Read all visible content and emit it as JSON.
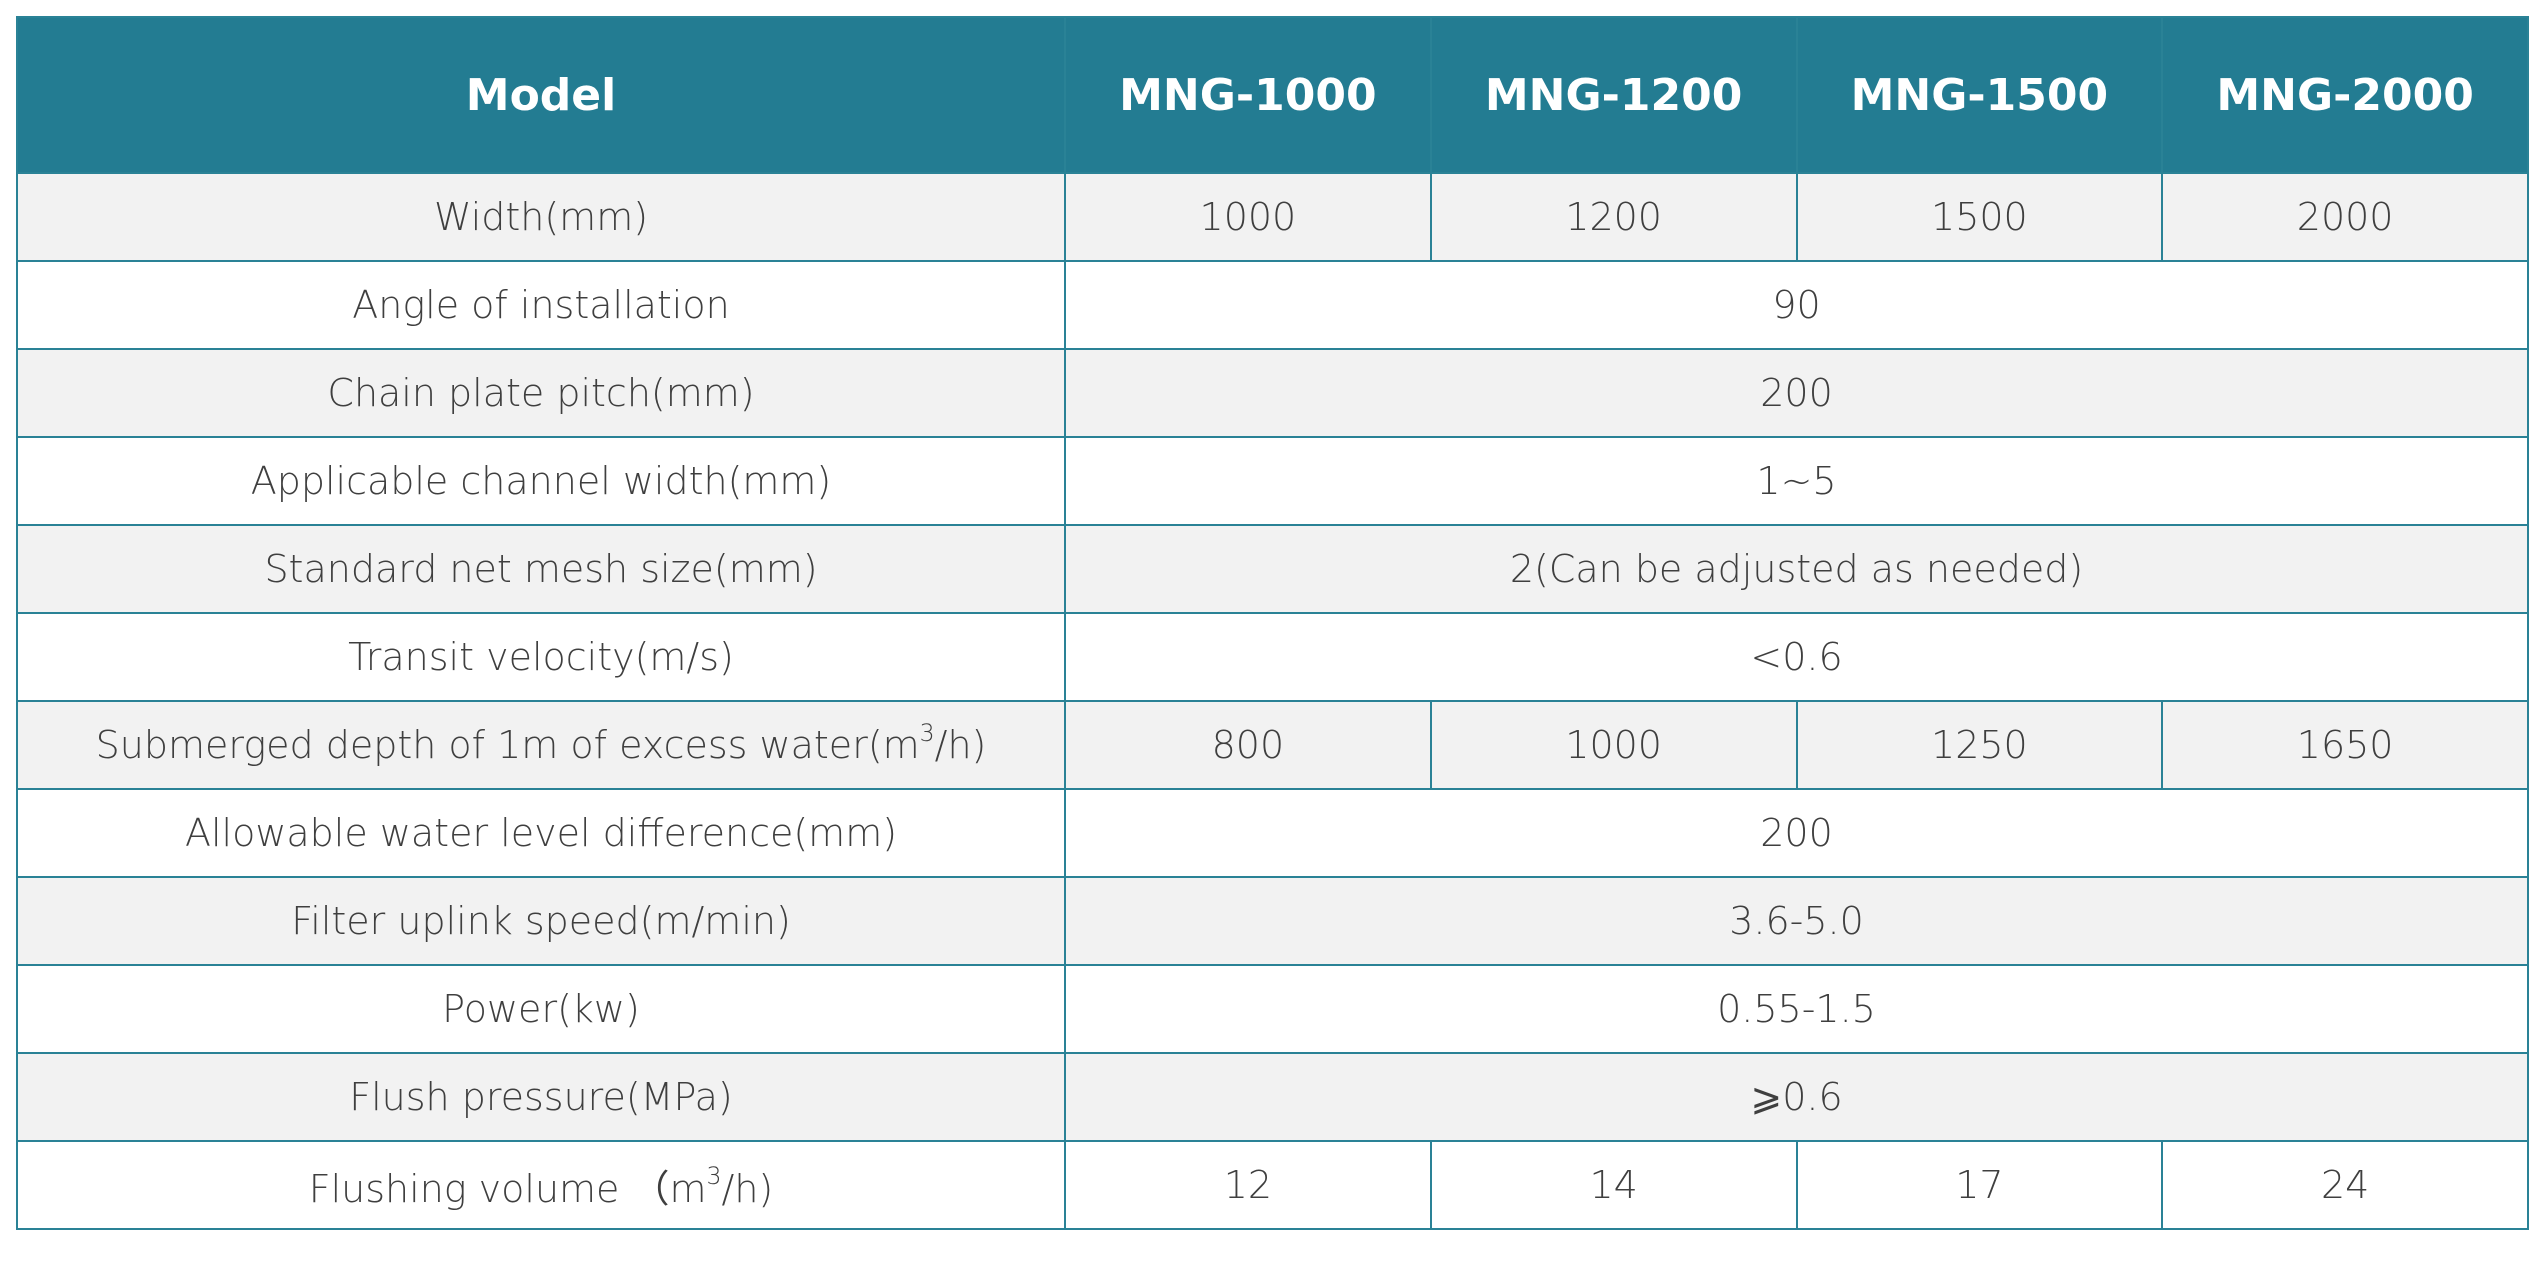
{
  "table": {
    "header": {
      "label": "Model",
      "models": [
        "MNG-1000",
        "MNG-1200",
        "MNG-1500",
        "MNG-2000"
      ]
    },
    "rows": [
      {
        "label": "Width(mm)",
        "values": [
          "1000",
          "1200",
          "1500",
          "2000"
        ]
      },
      {
        "label": "Angle of installation",
        "value": "90"
      },
      {
        "label": "Chain plate pitch(mm)",
        "value": "200"
      },
      {
        "label": "Applicable channel width(mm)",
        "value": "1~5"
      },
      {
        "label": "Standard net mesh size(mm)",
        "value": "2(Can be adjusted as needed)"
      },
      {
        "label": "Transit velocity(m/s)",
        "value": "<0.6"
      },
      {
        "label_pre": "Submerged depth of 1m of excess water(m",
        "label_sup": "3",
        "label_post": "/h)",
        "values": [
          "800",
          "1000",
          "1250",
          "1650"
        ]
      },
      {
        "label": "Allowable water level difference(mm)",
        "value": "200"
      },
      {
        "label": "Filter uplink speed(m/min)",
        "value": "3.6-5.0"
      },
      {
        "label": "Power(kw)",
        "value": "0.55-1.5"
      },
      {
        "label": "Flush pressure(MPa)",
        "value": "⩾0.6"
      },
      {
        "label_pre": "Flushing volume （m",
        "label_sup": "3",
        "label_post": "/h)",
        "values": [
          "12",
          "14",
          "17",
          "24"
        ]
      }
    ]
  }
}
